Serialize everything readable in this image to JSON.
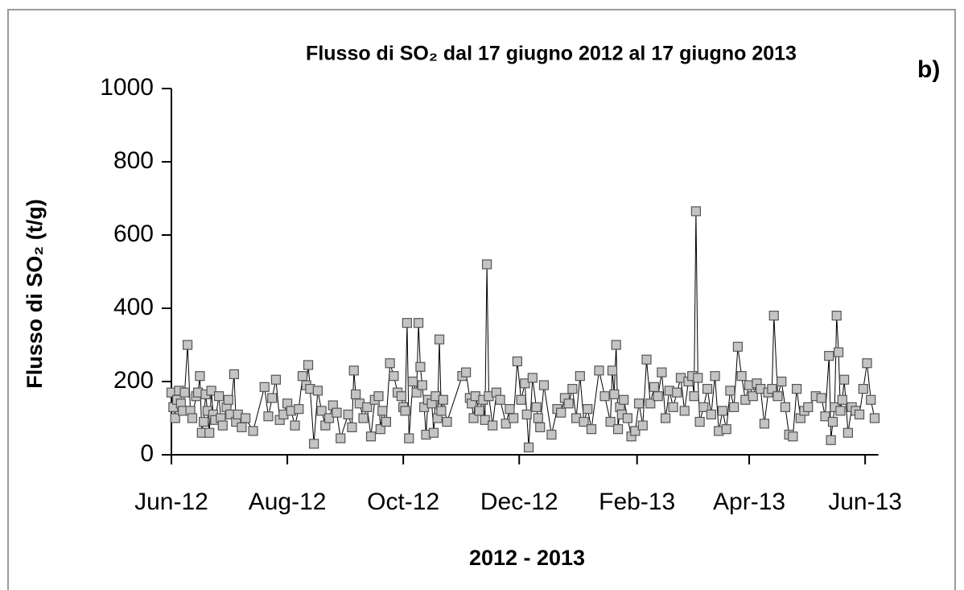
{
  "chart_data": {
    "type": "line",
    "title": "Flusso di SO₂ dal 17 giugno 2012 al 17 giugno 2013",
    "annotation": "b)",
    "x_label": "2012 - 2013",
    "y_label": "Flusso di SO₂  (t/g)",
    "xlim": [
      0,
      372
    ],
    "xticks": [
      {
        "value": 0,
        "label": "Jun-12"
      },
      {
        "value": 61,
        "label": "Aug-12"
      },
      {
        "value": 122,
        "label": "Oct-12"
      },
      {
        "value": 183,
        "label": "Dec-12"
      },
      {
        "value": 245,
        "label": "Feb-13"
      },
      {
        "value": 304,
        "label": "Apr-13"
      },
      {
        "value": 365,
        "label": "Jun-13"
      }
    ],
    "ylim": [
      0,
      1000
    ],
    "yticks": [
      0,
      200,
      400,
      600,
      800,
      1000
    ],
    "color": "#000000",
    "marker_color": "#c4c4c4",
    "x": [
      0,
      1,
      2,
      3,
      4,
      5,
      6,
      7,
      8.5,
      10,
      11,
      13,
      14,
      15,
      16,
      17,
      18,
      19,
      20,
      21,
      22,
      23,
      25,
      26,
      27,
      29,
      30,
      31,
      33,
      34,
      35,
      37,
      39,
      43,
      49,
      51,
      53,
      55,
      57,
      59,
      61,
      63,
      65,
      67,
      69,
      71,
      72,
      73,
      75,
      77,
      79,
      81,
      83,
      85,
      87,
      89,
      93,
      95,
      96,
      97,
      99,
      101,
      103,
      105,
      107,
      109,
      110,
      111,
      113,
      115,
      117,
      119,
      121,
      122,
      123,
      124,
      125,
      127,
      129,
      130,
      131,
      132,
      133,
      134,
      135,
      137,
      138,
      139,
      140,
      141,
      142,
      143,
      145,
      153,
      155,
      157,
      158,
      159,
      160,
      162,
      164,
      165,
      166,
      167,
      169,
      171,
      173,
      176,
      178,
      180,
      182,
      184,
      186,
      187,
      188,
      190,
      192,
      193,
      194,
      196,
      200,
      203,
      205,
      207,
      209,
      211,
      213,
      215,
      217,
      219,
      221,
      225,
      228,
      231,
      232,
      233,
      234,
      235,
      236,
      237,
      238,
      240,
      242,
      244,
      246,
      248,
      250,
      252,
      254,
      256,
      258,
      260,
      262,
      264,
      266,
      268,
      270,
      272,
      274,
      275,
      276,
      277,
      278,
      280,
      282,
      284,
      286,
      288,
      290,
      292,
      294,
      296,
      298,
      300,
      302,
      304,
      306,
      308,
      310,
      312,
      314,
      316,
      317,
      319,
      321,
      323,
      325,
      327,
      329,
      331,
      333,
      335,
      339,
      342,
      344,
      346,
      347,
      348,
      349,
      350,
      351,
      352,
      353,
      354,
      356,
      358,
      360,
      362,
      364,
      366,
      368,
      370
    ],
    "values": [
      170,
      130,
      100,
      150,
      175,
      140,
      120,
      170,
      300,
      120,
      100,
      160,
      170,
      215,
      60,
      90,
      165,
      120,
      60,
      175,
      110,
      95,
      160,
      100,
      80,
      130,
      150,
      110,
      220,
      90,
      110,
      75,
      100,
      65,
      185,
      105,
      155,
      205,
      95,
      110,
      140,
      120,
      80,
      125,
      215,
      190,
      245,
      180,
      30,
      175,
      120,
      80,
      100,
      135,
      115,
      45,
      110,
      75,
      230,
      165,
      140,
      100,
      130,
      50,
      150,
      160,
      70,
      120,
      90,
      250,
      215,
      170,
      160,
      130,
      120,
      360,
      45,
      200,
      170,
      360,
      240,
      190,
      130,
      55,
      150,
      140,
      60,
      160,
      100,
      315,
      120,
      150,
      90,
      215,
      225,
      155,
      140,
      100,
      160,
      120,
      150,
      95,
      520,
      160,
      80,
      170,
      150,
      85,
      125,
      100,
      255,
      150,
      195,
      110,
      20,
      210,
      130,
      100,
      75,
      190,
      55,
      125,
      115,
      155,
      140,
      180,
      100,
      215,
      90,
      125,
      70,
      230,
      160,
      90,
      230,
      165,
      300,
      70,
      130,
      110,
      150,
      100,
      50,
      65,
      140,
      80,
      260,
      140,
      185,
      160,
      225,
      100,
      175,
      130,
      170,
      210,
      120,
      200,
      215,
      160,
      665,
      210,
      90,
      130,
      180,
      110,
      215,
      65,
      120,
      70,
      175,
      130,
      295,
      215,
      150,
      190,
      160,
      195,
      180,
      85,
      170,
      180,
      380,
      160,
      200,
      130,
      55,
      50,
      180,
      100,
      120,
      130,
      160,
      155,
      105,
      270,
      40,
      90,
      130,
      380,
      280,
      120,
      150,
      205,
      60,
      130,
      120,
      110,
      180,
      250,
      150,
      100
    ]
  }
}
